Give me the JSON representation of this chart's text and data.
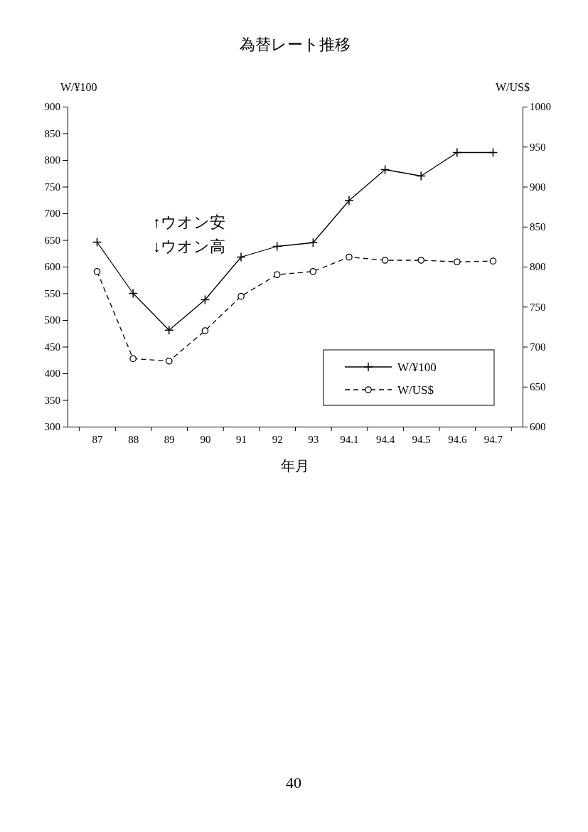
{
  "chart_data": {
    "type": "line",
    "title": "為替レート推移",
    "xlabel": "年月",
    "ylabel": "W/¥100",
    "y2label": "W/US$",
    "categories": [
      "87",
      "88",
      "89",
      "90",
      "91",
      "92",
      "93",
      "94.1",
      "94.4",
      "94.5",
      "94.6",
      "94.7"
    ],
    "series": [
      {
        "name": "W/¥100",
        "color": "#000000",
        "marker": "cross",
        "line_style": "solid",
        "values": [
          646,
          550,
          481,
          538,
          618,
          638,
          645,
          724,
          782,
          770,
          814,
          814
        ]
      },
      {
        "name": "W/US$",
        "color": "#000000",
        "marker": "circle",
        "line_style": "dashed",
        "axis": "y2",
        "values": [
          794,
          685,
          682,
          720,
          763,
          790,
          794,
          812,
          808,
          808,
          806,
          807
        ]
      }
    ],
    "ylim": [
      300,
      900
    ],
    "yticks": [
      300,
      350,
      400,
      450,
      500,
      550,
      600,
      650,
      700,
      750,
      800,
      850,
      900
    ],
    "y2lim": [
      600,
      1000
    ],
    "y2ticks": [
      600,
      650,
      700,
      750,
      800,
      850,
      900,
      950,
      1000
    ],
    "legend": "bottom right",
    "grid": false,
    "annotations": [
      "↑ウオン安",
      "↓ウオン高",
      "40"
    ]
  }
}
